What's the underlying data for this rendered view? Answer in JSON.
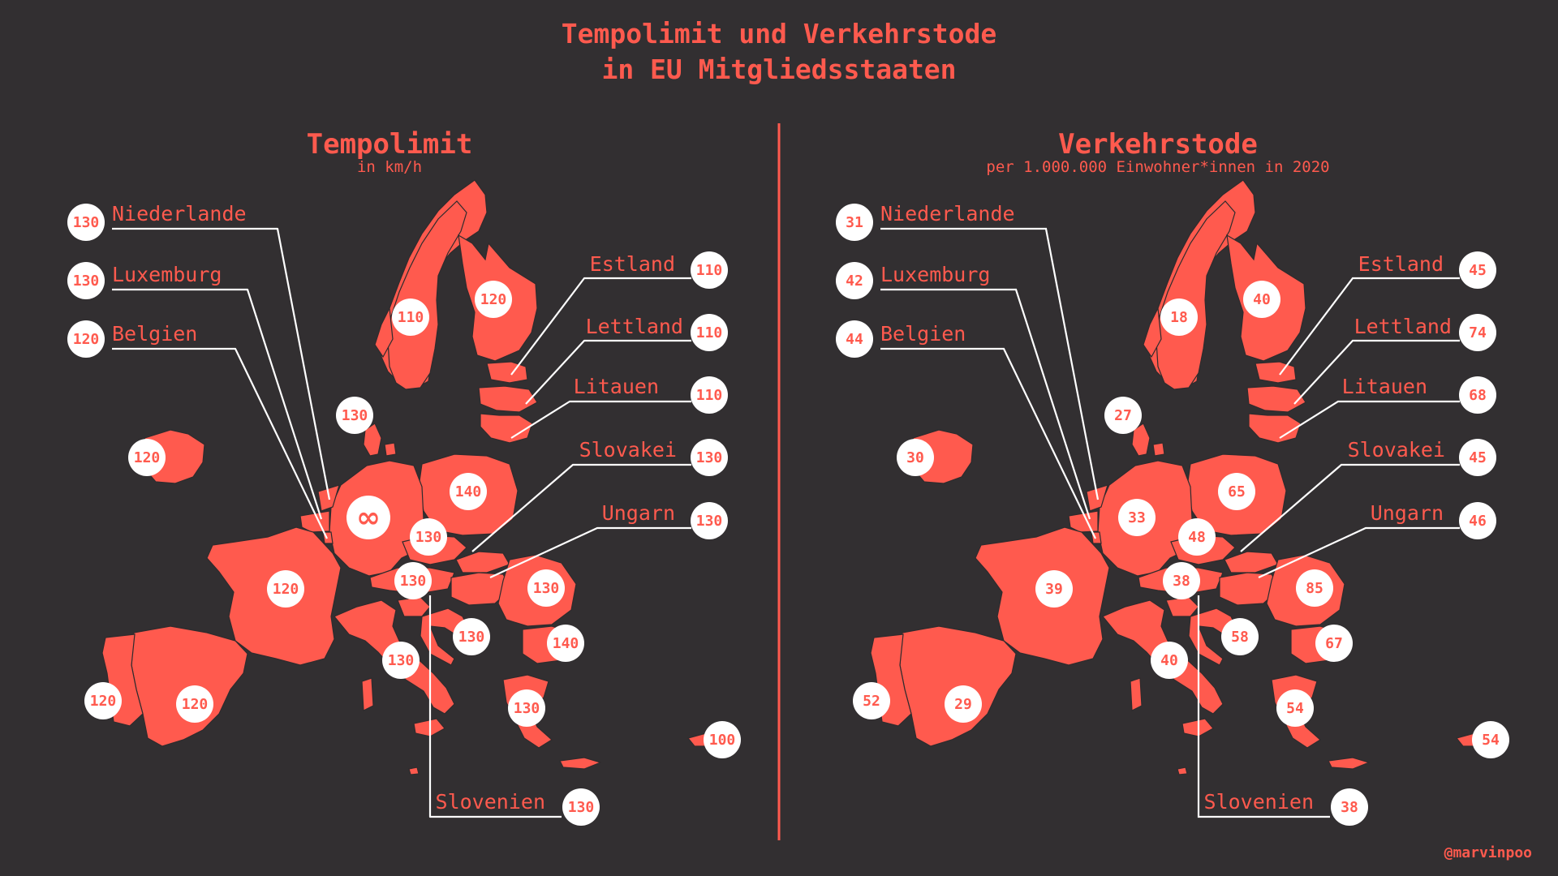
{
  "title_line1": "Tempolimit und Verkehrstode",
  "title_line2": "in EU Mitgliedsstaaten",
  "credit": "@marvinpoo",
  "colors": {
    "background": "#322f31",
    "accent": "#ff5a4e",
    "bubble": "#ffffff",
    "line": "#ffffff"
  },
  "panels": [
    {
      "title": "Tempolimit",
      "subtitle": "in km/h",
      "callouts": {
        "Niederlande": "130",
        "Luxemburg": "130",
        "Belgien": "120",
        "Estland": "110",
        "Lettland": "110",
        "Litauen": "110",
        "Slovakei": "130",
        "Ungarn": "130",
        "Slovenien": "130"
      },
      "map_values": {
        "Norwegen": "110",
        "Finnland": "120",
        "Daenemark": "130",
        "Irland": "120",
        "Deutschland": "∞",
        "Polen": "140",
        "Tschechien": "130",
        "Oesterreich": "130",
        "Frankreich": "120",
        "Rumaenien": "130",
        "Kroatien": "130",
        "Bulgarien": "140",
        "Italien": "130",
        "Portugal": "120",
        "Spanien": "120",
        "Griechenland": "130",
        "Zypern": "100"
      }
    },
    {
      "title": "Verkehrstode",
      "subtitle": "per 1.000.000 Einwohner*innen in 2020",
      "callouts": {
        "Niederlande": "31",
        "Luxemburg": "42",
        "Belgien": "44",
        "Estland": "45",
        "Lettland": "74",
        "Litauen": "68",
        "Slovakei": "45",
        "Ungarn": "46",
        "Slovenien": "38"
      },
      "map_values": {
        "Norwegen": "18",
        "Finnland": "40",
        "Daenemark": "27",
        "Irland": "30",
        "Deutschland": "33",
        "Polen": "65",
        "Tschechien": "48",
        "Oesterreich": "38",
        "Frankreich": "39",
        "Rumaenien": "85",
        "Kroatien": "58",
        "Bulgarien": "67",
        "Italien": "40",
        "Portugal": "52",
        "Spanien": "29",
        "Griechenland": "54",
        "Zypern": "54"
      }
    }
  ]
}
